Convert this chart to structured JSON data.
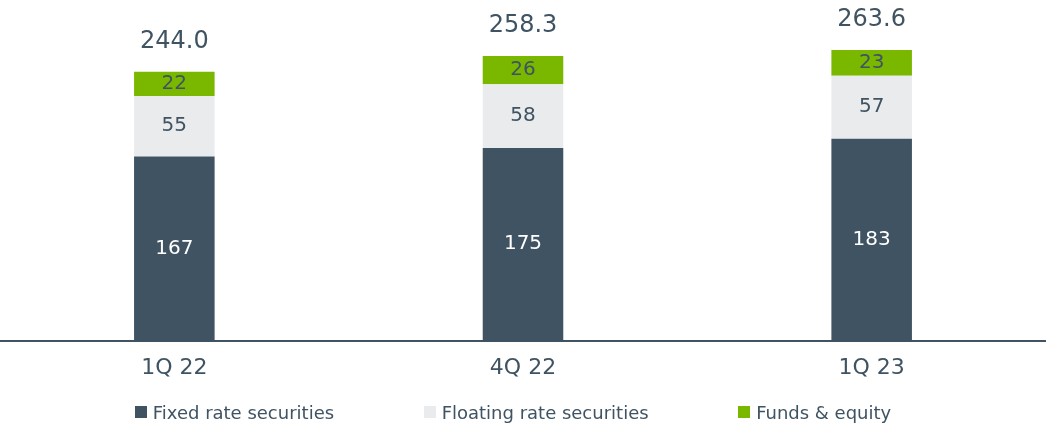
{
  "chart_data": {
    "type": "bar",
    "stacked": true,
    "categories": [
      "1Q 22",
      "4Q 22",
      "1Q 23"
    ],
    "series": [
      {
        "name": "Fixed rate securities",
        "color": "#3f5362",
        "values": [
          167,
          174.8,
          183.2
        ],
        "value_labels": [
          "167",
          "175",
          "183"
        ]
      },
      {
        "name": "Floating rate securities",
        "color": "#e9ebed",
        "values": [
          55,
          57.9,
          57.1
        ],
        "value_labels": [
          "55",
          "58",
          "57"
        ]
      },
      {
        "name": "Funds & equity",
        "color": "#7ab800",
        "values": [
          22,
          25.6,
          23.3
        ],
        "value_labels": [
          "22",
          "26",
          "23"
        ]
      }
    ],
    "totals": [
      "244.0",
      "258.3",
      "263.6"
    ],
    "legend": "bottom",
    "grid": false
  }
}
